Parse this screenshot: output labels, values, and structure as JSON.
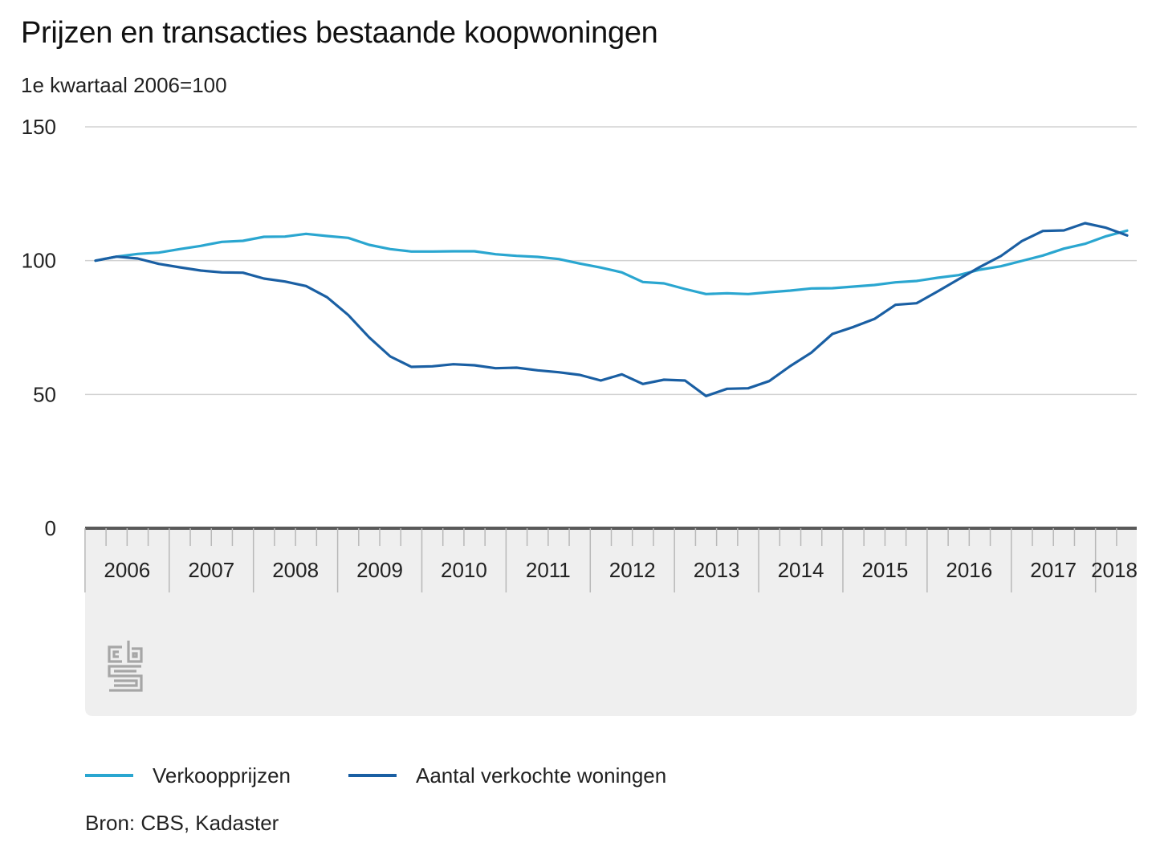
{
  "header": {
    "title": "Prijzen en transacties bestaande koopwoningen",
    "subtitle": "1e kwartaal 2006=100"
  },
  "source": "Bron: CBS, Kadaster",
  "logo": {
    "icon": "cbs-logo-icon",
    "color": "#a6a6a6"
  },
  "colors": {
    "grid": "#d2d2d2",
    "axis": "#5a5a5a",
    "band": "#efefef",
    "tick": "#b8b8b8"
  },
  "chart_data": {
    "type": "line",
    "title": "Prijzen en transacties bestaande koopwoningen",
    "subtitle": "1e kwartaal 2006=100",
    "xlabel": "",
    "ylabel": "",
    "ylim": [
      0,
      150
    ],
    "yticks": [
      "0",
      "50",
      "100",
      "150"
    ],
    "grid": true,
    "legend_position": "bottom",
    "x_labels": [
      "2006",
      "2007",
      "2008",
      "2009",
      "2010",
      "2011",
      "2012",
      "2013",
      "2014",
      "2015",
      "2016",
      "2017",
      "2018"
    ],
    "x": [
      "2006 Q1",
      "2006 Q2",
      "2006 Q3",
      "2006 Q4",
      "2007 Q1",
      "2007 Q2",
      "2007 Q3",
      "2007 Q4",
      "2008 Q1",
      "2008 Q2",
      "2008 Q3",
      "2008 Q4",
      "2009 Q1",
      "2009 Q2",
      "2009 Q3",
      "2009 Q4",
      "2010 Q1",
      "2010 Q2",
      "2010 Q3",
      "2010 Q4",
      "2011 Q1",
      "2011 Q2",
      "2011 Q3",
      "2011 Q4",
      "2012 Q1",
      "2012 Q2",
      "2012 Q3",
      "2012 Q4",
      "2013 Q1",
      "2013 Q2",
      "2013 Q3",
      "2013 Q4",
      "2014 Q1",
      "2014 Q2",
      "2014 Q3",
      "2014 Q4",
      "2015 Q1",
      "2015 Q2",
      "2015 Q3",
      "2015 Q4",
      "2016 Q1",
      "2016 Q2",
      "2016 Q3",
      "2016 Q4",
      "2017 Q1",
      "2017 Q2",
      "2017 Q3",
      "2017 Q4",
      "2018 Q1",
      "2018 Q2"
    ],
    "series": [
      {
        "name": "Verkoopprijzen",
        "color": "#2aa6d0",
        "values": [
          100,
          101.5,
          102.5,
          103,
          104.3,
          105.5,
          107,
          107.4,
          108.9,
          109,
          110,
          109.2,
          108.5,
          105.9,
          104.3,
          103.4,
          103.4,
          103.5,
          103.5,
          102.4,
          101.8,
          101.4,
          100.6,
          98.9,
          97.4,
          95.6,
          92,
          91.5,
          89.4,
          87.5,
          87.8,
          87.5,
          88.2,
          88.8,
          89.6,
          89.7,
          90.3,
          90.9,
          91.9,
          92.4,
          93.6,
          94.6,
          96.6,
          97.9,
          99.9,
          101.9,
          104.5,
          106.3,
          109.1,
          111.2
        ]
      },
      {
        "name": "Aantal verkochte woningen",
        "color": "#1a5fa3",
        "values": [
          100,
          101.5,
          100.8,
          98.8,
          97.5,
          96.3,
          95.6,
          95.5,
          93.3,
          92.2,
          90.5,
          86.3,
          79.7,
          71.3,
          64.2,
          60.3,
          60.5,
          61.3,
          60.9,
          59.8,
          60,
          59,
          58.3,
          57.3,
          55.2,
          57.5,
          53.9,
          55.5,
          55.2,
          49.4,
          52.1,
          52.3,
          55,
          60.6,
          65.6,
          72.6,
          75.2,
          78.2,
          83.5,
          84.1,
          88.5,
          93.1,
          97.6,
          101.7,
          107.3,
          111.1,
          111.3,
          114,
          112.3,
          109.4
        ]
      }
    ]
  }
}
